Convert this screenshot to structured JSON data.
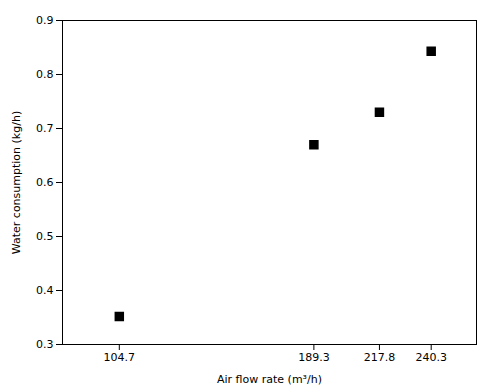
{
  "chart_data": {
    "type": "scatter",
    "x": [
      104.7,
      189.3,
      217.8,
      240.3
    ],
    "values": [
      0.352,
      0.67,
      0.73,
      0.843
    ],
    "xlabel": "Air flow rate (m³/h)",
    "ylabel": "Water consumption (kg/h)",
    "xlim": [
      80,
      260
    ],
    "ylim": [
      0.3,
      0.9
    ],
    "xticks": [
      104.7,
      189.3,
      217.8,
      240.3
    ],
    "yticks": [
      0.3,
      0.4,
      0.5,
      0.6,
      0.7,
      0.8,
      0.9
    ],
    "marker": "square",
    "color": "black"
  }
}
